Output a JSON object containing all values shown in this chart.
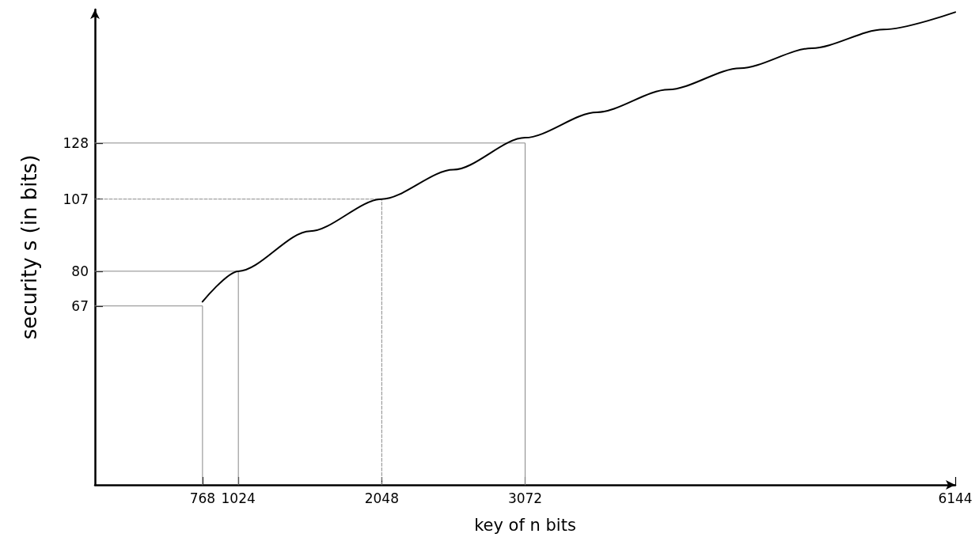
{
  "chart_data": {
    "type": "line",
    "xlabel": "key of n bits",
    "ylabel": "security s (in bits)",
    "xlim": [
      0,
      6144
    ],
    "ylim": [
      0,
      178
    ],
    "xticks": [
      768,
      1024,
      2048,
      3072,
      6144
    ],
    "yticks": [
      67,
      80,
      107,
      128
    ],
    "grid": false,
    "marker": "none",
    "series": [
      {
        "color": "#888888",
        "line_style": "solid",
        "x": [
          0,
          768,
          768
        ],
        "values": [
          67,
          67,
          0
        ]
      },
      {
        "color": "#888888",
        "line_style": "solid",
        "x": [
          0,
          1024,
          1024
        ],
        "values": [
          80,
          80,
          0
        ]
      },
      {
        "color": "#888888",
        "line_style": "dashed",
        "x": [
          0,
          2048,
          2048
        ],
        "values": [
          107,
          107,
          0
        ]
      },
      {
        "color": "#888888",
        "line_style": "solid",
        "x": [
          0,
          3072,
          3072
        ],
        "values": [
          128,
          128,
          0
        ]
      },
      {
        "color": "#000000",
        "line_style": "solid",
        "x": [
          768,
          1024,
          1536,
          2048,
          2560,
          3072,
          3584,
          4096,
          4608,
          5120,
          5632,
          6144
        ],
        "values": [
          68.6,
          80,
          95,
          107,
          118,
          130,
          139.5,
          148,
          156,
          163.5,
          170.5,
          177
        ]
      }
    ]
  }
}
